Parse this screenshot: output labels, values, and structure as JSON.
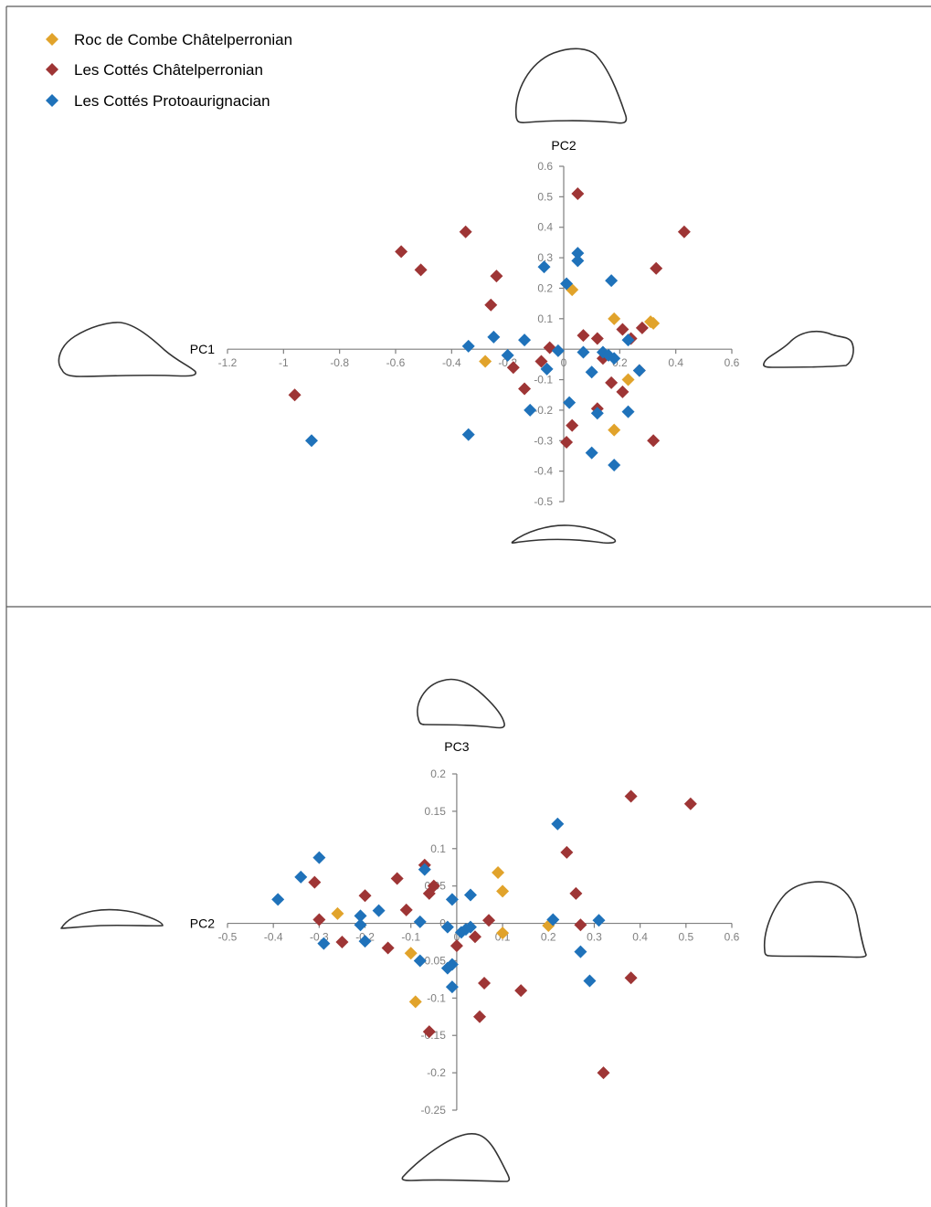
{
  "legend": [
    {
      "label": "Roc de Combe Châtelperronian",
      "color": "#E1A32B"
    },
    {
      "label": "Les Cottés Châtelperronian",
      "color": "#9E3535"
    },
    {
      "label": "Les Cottés Protoaurignacian",
      "color": "#1F72BA"
    }
  ],
  "chart_data": [
    {
      "type": "scatter",
      "xlabel": "PC1",
      "ylabel": "PC2",
      "xlim": [
        -1.2,
        0.6
      ],
      "ylim": [
        -0.5,
        0.6
      ],
      "xticks": [
        -1.2,
        -1,
        -0.8,
        -0.6,
        -0.4,
        -0.2,
        0,
        0.2,
        0.4,
        0.6
      ],
      "yticks": [
        -0.5,
        -0.4,
        -0.3,
        -0.2,
        -0.1,
        0,
        0.1,
        0.2,
        0.3,
        0.4,
        0.5,
        0.6
      ],
      "xtick_labels": [
        "-1.2",
        "-1",
        "-0.8",
        "-0.6",
        "-0.4",
        "-0.2",
        "0",
        "0.2",
        "0.4",
        "0.6"
      ],
      "ytick_labels": [
        "-0.5",
        "-0.4",
        "-0.3",
        "-0.2",
        "-0.1",
        "0",
        "0.1",
        "0.2",
        "0.3",
        "0.4",
        "0.5",
        "0.6"
      ],
      "grid": false,
      "series": [
        {
          "name": "Roc de Combe Châtelperronian",
          "points": [
            [
              -0.28,
              -0.04
            ],
            [
              0.03,
              0.195
            ],
            [
              0.18,
              0.1
            ],
            [
              0.31,
              0.09
            ],
            [
              0.32,
              0.085
            ],
            [
              0.23,
              -0.1
            ],
            [
              0.18,
              -0.265
            ]
          ]
        },
        {
          "name": "Les Cottés Châtelperronian",
          "points": [
            [
              -0.96,
              -0.15
            ],
            [
              -0.58,
              0.32
            ],
            [
              -0.51,
              0.26
            ],
            [
              -0.35,
              0.385
            ],
            [
              -0.24,
              0.24
            ],
            [
              -0.26,
              0.145
            ],
            [
              -0.18,
              -0.06
            ],
            [
              -0.14,
              -0.13
            ],
            [
              -0.08,
              -0.04
            ],
            [
              -0.05,
              0.005
            ],
            [
              0.05,
              0.51
            ],
            [
              0.07,
              0.045
            ],
            [
              0.12,
              0.035
            ],
            [
              0.14,
              -0.03
            ],
            [
              0.17,
              -0.11
            ],
            [
              0.21,
              0.065
            ],
            [
              0.24,
              0.035
            ],
            [
              0.28,
              0.07
            ],
            [
              0.27,
              -0.07
            ],
            [
              0.21,
              -0.14
            ],
            [
              0.12,
              -0.195
            ],
            [
              0.03,
              -0.25
            ],
            [
              0.01,
              -0.305
            ],
            [
              0.33,
              0.265
            ],
            [
              0.43,
              0.385
            ],
            [
              0.32,
              -0.3
            ]
          ]
        },
        {
          "name": "Les Cottés Protoaurignacian",
          "points": [
            [
              -0.9,
              -0.3
            ],
            [
              -0.34,
              -0.28
            ],
            [
              -0.34,
              0.01
            ],
            [
              -0.25,
              0.04
            ],
            [
              -0.2,
              -0.02
            ],
            [
              -0.14,
              0.03
            ],
            [
              -0.12,
              -0.2
            ],
            [
              -0.07,
              0.27
            ],
            [
              -0.06,
              -0.065
            ],
            [
              -0.02,
              -0.005
            ],
            [
              0.01,
              0.215
            ],
            [
              0.05,
              0.315
            ],
            [
              0.05,
              0.29
            ],
            [
              0.02,
              -0.175
            ],
            [
              0.07,
              -0.01
            ],
            [
              0.1,
              -0.075
            ],
            [
              0.14,
              -0.01
            ],
            [
              0.16,
              -0.02
            ],
            [
              0.18,
              -0.03
            ],
            [
              0.17,
              0.225
            ],
            [
              0.23,
              0.03
            ],
            [
              0.27,
              -0.07
            ],
            [
              0.23,
              -0.205
            ],
            [
              0.12,
              -0.21
            ],
            [
              0.1,
              -0.34
            ],
            [
              0.18,
              -0.38
            ]
          ]
        }
      ]
    },
    {
      "type": "scatter",
      "xlabel": "PC2",
      "ylabel": "PC3",
      "xlim": [
        -0.5,
        0.6
      ],
      "ylim": [
        -0.25,
        0.2
      ],
      "xticks": [
        -0.5,
        -0.4,
        -0.3,
        -0.2,
        -0.1,
        0,
        0.1,
        0.2,
        0.3,
        0.4,
        0.5,
        0.6
      ],
      "yticks": [
        -0.25,
        -0.2,
        -0.15,
        -0.1,
        -0.05,
        0,
        0.05,
        0.1,
        0.15,
        0.2
      ],
      "xtick_labels": [
        "-0.5",
        "-0.4",
        "-0.3",
        "-0.2",
        "-0.1",
        "0",
        "0.1",
        "0.2",
        "0.3",
        "0.4",
        "0.5",
        "0.6"
      ],
      "ytick_labels": [
        "-0.25",
        "-0.2",
        "-0.15",
        "-0.1",
        "-0.05",
        "0",
        "0.05",
        "0.1",
        "0.15",
        "0.2"
      ],
      "grid": false,
      "series": [
        {
          "name": "Roc de Combe Châtelperronian",
          "points": [
            [
              -0.26,
              0.013
            ],
            [
              -0.1,
              -0.04
            ],
            [
              -0.09,
              -0.105
            ],
            [
              0.09,
              0.068
            ],
            [
              0.1,
              0.043
            ],
            [
              0.1,
              -0.013
            ],
            [
              0.2,
              -0.003
            ]
          ]
        },
        {
          "name": "Les Cottés Châtelperronian",
          "points": [
            [
              -0.31,
              0.055
            ],
            [
              -0.3,
              0.005
            ],
            [
              -0.25,
              -0.025
            ],
            [
              -0.2,
              0.037
            ],
            [
              -0.15,
              -0.033
            ],
            [
              -0.13,
              0.06
            ],
            [
              -0.11,
              0.018
            ],
            [
              -0.07,
              0.078
            ],
            [
              -0.06,
              0.04
            ],
            [
              -0.05,
              0.05
            ],
            [
              -0.06,
              -0.145
            ],
            [
              0.0,
              -0.03
            ],
            [
              0.04,
              -0.018
            ],
            [
              0.07,
              0.004
            ],
            [
              0.06,
              -0.08
            ],
            [
              0.05,
              -0.125
            ],
            [
              0.14,
              -0.09
            ],
            [
              0.24,
              0.095
            ],
            [
              0.26,
              0.04
            ],
            [
              0.27,
              -0.002
            ],
            [
              0.32,
              -0.2
            ],
            [
              0.38,
              0.17
            ],
            [
              0.38,
              -0.073
            ],
            [
              0.51,
              0.16
            ]
          ]
        },
        {
          "name": "Les Cottés Protoaurignacian",
          "points": [
            [
              -0.39,
              0.032
            ],
            [
              -0.34,
              0.062
            ],
            [
              -0.3,
              0.088
            ],
            [
              -0.29,
              -0.027
            ],
            [
              -0.21,
              0.01
            ],
            [
              -0.21,
              -0.002
            ],
            [
              -0.2,
              -0.024
            ],
            [
              -0.17,
              0.017
            ],
            [
              -0.08,
              0.002
            ],
            [
              -0.07,
              0.072
            ],
            [
              -0.08,
              -0.05
            ],
            [
              -0.02,
              -0.005
            ],
            [
              -0.02,
              -0.06
            ],
            [
              -0.01,
              0.032
            ],
            [
              -0.01,
              -0.055
            ],
            [
              -0.01,
              -0.085
            ],
            [
              0.01,
              -0.012
            ],
            [
              0.02,
              -0.008
            ],
            [
              0.03,
              -0.005
            ],
            [
              0.03,
              0.038
            ],
            [
              0.21,
              0.005
            ],
            [
              0.22,
              0.133
            ],
            [
              0.27,
              -0.038
            ],
            [
              0.29,
              -0.077
            ],
            [
              0.31,
              0.004
            ]
          ]
        }
      ]
    }
  ]
}
